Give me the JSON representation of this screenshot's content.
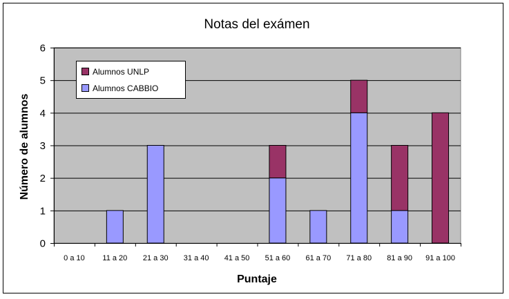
{
  "colors": {
    "plot_background": "#c0c0c0",
    "gridline": "#000000",
    "cabbio": "#9999ff",
    "unlp": "#993366",
    "bar_outline": "#000000"
  },
  "chart_data": {
    "type": "bar",
    "stacked": true,
    "title": "Notas del exámen",
    "xlabel": "Puntaje",
    "ylabel": "Número de alumnos",
    "categories": [
      "0 a 10",
      "11 a 20",
      "21 a 30",
      "31 a 40",
      "41 a 50",
      "51 a 60",
      "61 a 70",
      "71 a 80",
      "81 a 90",
      "91 a 100"
    ],
    "series": [
      {
        "name": "Alumnos CABBIO",
        "color": "#9999ff",
        "values": [
          0,
          1,
          3,
          0,
          0,
          2,
          1,
          4,
          1,
          0
        ]
      },
      {
        "name": "Alumnos UNLP",
        "color": "#993366",
        "values": [
          0,
          0,
          0,
          0,
          0,
          1,
          0,
          1,
          2,
          4
        ]
      }
    ],
    "ylim": [
      0,
      6
    ],
    "yticks": [
      0,
      1,
      2,
      3,
      4,
      5,
      6
    ],
    "grid": true,
    "legend": {
      "position": "top-left",
      "order": [
        "Alumnos UNLP",
        "Alumnos CABBIO"
      ]
    }
  }
}
